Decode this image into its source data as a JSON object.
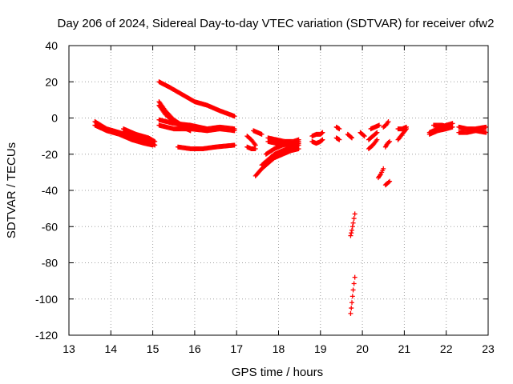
{
  "chart_data": {
    "type": "scatter",
    "title": "Day 206 of 2024, Sidereal Day-to-day VTEC variation (SDTVAR) for receiver ofw2",
    "xlabel": "GPS time / hours",
    "ylabel": "SDTVAR / TECUs",
    "xlim": [
      13,
      23
    ],
    "ylim": [
      -120,
      40
    ],
    "xticks": [
      13,
      14,
      15,
      16,
      17,
      18,
      19,
      20,
      21,
      22,
      23
    ],
    "yticks": [
      -120,
      -100,
      -80,
      -60,
      -40,
      -20,
      0,
      20,
      40
    ],
    "grid": true,
    "marker": "+",
    "series_color": "#ff0000",
    "segments": [
      {
        "x": [
          13.62,
          13.9,
          14.2,
          14.5,
          14.8,
          15.0
        ],
        "y": [
          -2,
          -6,
          -8,
          -10,
          -12,
          -13
        ]
      },
      {
        "x": [
          13.62,
          13.9,
          14.2,
          14.5,
          14.8,
          15.0
        ],
        "y": [
          -4,
          -7,
          -9,
          -12,
          -14,
          -15
        ]
      },
      {
        "x": [
          14.3,
          14.6,
          14.9,
          15.05
        ],
        "y": [
          -6,
          -9,
          -11,
          -13
        ]
      },
      {
        "x": [
          14.3,
          14.6,
          14.9,
          15.05
        ],
        "y": [
          -8,
          -11,
          -13,
          -15
        ]
      },
      {
        "x": [
          15.15,
          15.4,
          15.7,
          16.0,
          16.3,
          16.6,
          16.95
        ],
        "y": [
          20,
          17,
          13,
          9,
          7,
          4,
          1
        ]
      },
      {
        "x": [
          15.15,
          15.3,
          15.5,
          15.7,
          15.9
        ],
        "y": [
          9,
          4,
          -1,
          -4,
          -6
        ]
      },
      {
        "x": [
          15.15,
          15.3,
          15.5,
          15.7,
          15.9
        ],
        "y": [
          7,
          2,
          -2,
          -5,
          -7
        ]
      },
      {
        "x": [
          15.15,
          15.5,
          15.9,
          16.3,
          16.6,
          16.95
        ],
        "y": [
          -1,
          -3,
          -4,
          -6,
          -5,
          -6
        ]
      },
      {
        "x": [
          15.15,
          15.5,
          15.9,
          16.3,
          16.6,
          16.95
        ],
        "y": [
          -4,
          -6,
          -6,
          -7,
          -6,
          -7
        ]
      },
      {
        "x": [
          15.6,
          15.9,
          16.2,
          16.5,
          16.95
        ],
        "y": [
          -16,
          -17,
          -17,
          -16,
          -15
        ]
      },
      {
        "x": [
          17.25,
          17.35,
          17.45
        ],
        "y": [
          -10,
          -12,
          -15
        ]
      },
      {
        "x": [
          17.25,
          17.35,
          17.45
        ],
        "y": [
          -16,
          -17,
          -17
        ]
      },
      {
        "x": [
          17.4,
          17.5,
          17.6
        ],
        "y": [
          -7,
          -8,
          -9
        ]
      },
      {
        "x": [
          17.45,
          17.6,
          17.75,
          17.9,
          18.1,
          18.3,
          18.48
        ],
        "y": [
          -32,
          -28,
          -25,
          -22,
          -20,
          -18,
          -17
        ]
      },
      {
        "x": [
          17.6,
          17.75,
          17.9,
          18.1,
          18.3,
          18.48
        ],
        "y": [
          -26,
          -23,
          -20,
          -18,
          -16,
          -15
        ]
      },
      {
        "x": [
          17.7,
          17.9,
          18.1,
          18.3,
          18.48
        ],
        "y": [
          -20,
          -17,
          -15,
          -14,
          -13
        ]
      },
      {
        "x": [
          17.75,
          17.95,
          18.15,
          18.35,
          18.48
        ],
        "y": [
          -11,
          -12,
          -13,
          -13,
          -12
        ]
      },
      {
        "x": [
          17.75,
          17.95,
          18.15,
          18.35,
          18.48
        ],
        "y": [
          -13,
          -14,
          -14,
          -15,
          -14
        ]
      },
      {
        "x": [
          18.8,
          18.9,
          19.0,
          19.05
        ],
        "y": [
          -10,
          -9,
          -9,
          -8
        ]
      },
      {
        "x": [
          18.8,
          18.9,
          19.0,
          19.05
        ],
        "y": [
          -13,
          -14,
          -13,
          -12
        ]
      },
      {
        "x": [
          19.38,
          19.45
        ],
        "y": [
          -5,
          -6
        ]
      },
      {
        "x": [
          19.38,
          19.45
        ],
        "y": [
          -11,
          -12
        ]
      },
      {
        "x": [
          19.65,
          19.7,
          19.75
        ],
        "y": [
          -9,
          -10,
          -11
        ]
      },
      {
        "x": [
          19.72,
          19.75,
          19.78,
          19.82
        ],
        "y": [
          -65,
          -62,
          -58,
          -53
        ]
      },
      {
        "x": [
          19.72,
          19.75,
          19.78,
          19.82
        ],
        "y": [
          -108,
          -102,
          -95,
          -88
        ]
      },
      {
        "x": [
          19.95,
          20.0,
          20.05
        ],
        "y": [
          -8,
          -9,
          -10
        ]
      },
      {
        "x": [
          20.15,
          20.25,
          20.35
        ],
        "y": [
          -17,
          -15,
          -12
        ]
      },
      {
        "x": [
          20.15,
          20.25,
          20.35
        ],
        "y": [
          -12,
          -10,
          -8
        ]
      },
      {
        "x": [
          20.2,
          20.3,
          20.4
        ],
        "y": [
          -6,
          -5,
          -4
        ]
      },
      {
        "x": [
          20.38,
          20.44,
          20.5
        ],
        "y": [
          -33,
          -31,
          -28
        ]
      },
      {
        "x": [
          20.5,
          20.56,
          20.62
        ],
        "y": [
          -5,
          -4,
          -2
        ]
      },
      {
        "x": [
          20.55,
          20.6,
          20.65
        ],
        "y": [
          -37,
          -36,
          -35
        ]
      },
      {
        "x": [
          20.55,
          20.6,
          20.65
        ],
        "y": [
          -16,
          -14,
          -13
        ]
      },
      {
        "x": [
          20.85,
          20.95,
          21.05
        ],
        "y": [
          -12,
          -9,
          -6
        ]
      },
      {
        "x": [
          20.85,
          20.95,
          21.05
        ],
        "y": [
          -6,
          -6,
          -5
        ]
      },
      {
        "x": [
          21.6,
          21.8,
          22.0,
          22.15
        ],
        "y": [
          -9,
          -7,
          -6,
          -5
        ]
      },
      {
        "x": [
          21.6,
          21.8,
          22.0,
          22.15
        ],
        "y": [
          -8,
          -6,
          -4,
          -3
        ]
      },
      {
        "x": [
          21.7,
          21.9,
          22.1
        ],
        "y": [
          -4,
          -4,
          -5
        ]
      },
      {
        "x": [
          22.3,
          22.5,
          22.7,
          22.95
        ],
        "y": [
          -5,
          -6,
          -6,
          -5
        ]
      },
      {
        "x": [
          22.3,
          22.5,
          22.7,
          22.95
        ],
        "y": [
          -8,
          -8,
          -7,
          -8
        ]
      }
    ]
  }
}
